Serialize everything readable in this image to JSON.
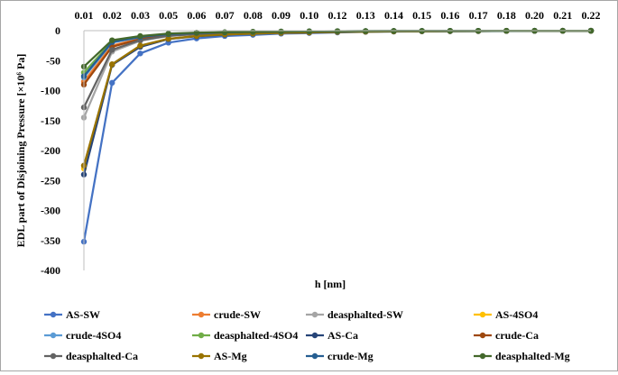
{
  "chart_data": {
    "type": "line",
    "xlabel": "h [nm]",
    "ylabel": "EDL part of Disjoining  Pressure [×10⁶ Pa]",
    "categories": [
      "0.01",
      "0.02",
      "0.03",
      "0.05",
      "0.06",
      "0.07",
      "0.08",
      "0.09",
      "0.10",
      "0.12",
      "0.13",
      "0.14",
      "0.15",
      "0.16",
      "0.17",
      "0.18",
      "0.20",
      "0.21",
      "0.22"
    ],
    "ylim": [
      -400,
      0
    ],
    "yticks": [
      0,
      -50,
      -100,
      -150,
      -200,
      -250,
      -300,
      -350,
      -400
    ],
    "x_axis_position": "top",
    "grid": false,
    "legend_position": "bottom",
    "series": [
      {
        "name": "AS-SW",
        "color": "#4472c4",
        "values": [
          -352,
          -87,
          -38,
          -20,
          -13,
          -9,
          -7,
          -5,
          -4,
          -3,
          -2,
          -1.5,
          -1.2,
          -1,
          -0.8,
          -0.6,
          -0.5,
          -0.4,
          -0.3
        ]
      },
      {
        "name": "crude-SW",
        "color": "#ed7d31",
        "values": [
          -85,
          -25,
          -13,
          -7,
          -5,
          -3.5,
          -2.6,
          -2,
          -1.6,
          -1.2,
          -0.9,
          -0.7,
          -0.6,
          -0.5,
          -0.4,
          -0.3,
          -0.25,
          -0.2,
          -0.15
        ]
      },
      {
        "name": "deasphalted-SW",
        "color": "#a5a5a5",
        "values": [
          -145,
          -35,
          -17,
          -9,
          -6,
          -4.5,
          -3.4,
          -2.6,
          -2,
          -1.5,
          -1.2,
          -0.9,
          -0.7,
          -0.6,
          -0.5,
          -0.4,
          -0.3,
          -0.25,
          -0.2
        ]
      },
      {
        "name": "AS-4SO4",
        "color": "#ffc000",
        "values": [
          -230,
          -57,
          -26,
          -14,
          -9,
          -6.5,
          -5,
          -3.8,
          -3,
          -2.2,
          -1.7,
          -1.3,
          -1,
          -0.8,
          -0.7,
          -0.5,
          -0.4,
          -0.35,
          -0.3
        ]
      },
      {
        "name": "crude-4SO4",
        "color": "#5b9bd5",
        "values": [
          -78,
          -20,
          -11,
          -6,
          -4,
          -3,
          -2.2,
          -1.7,
          -1.3,
          -1,
          -0.8,
          -0.6,
          -0.5,
          -0.4,
          -0.3,
          -0.25,
          -0.2,
          -0.15,
          -0.1
        ]
      },
      {
        "name": "deasphalted-4SO4",
        "color": "#70ad47",
        "values": [
          -70,
          -18,
          -10,
          -5.5,
          -3.8,
          -2.8,
          -2,
          -1.6,
          -1.2,
          -0.9,
          -0.7,
          -0.55,
          -0.45,
          -0.35,
          -0.3,
          -0.22,
          -0.18,
          -0.14,
          -0.1
        ]
      },
      {
        "name": "AS-Ca",
        "color": "#264478",
        "values": [
          -240,
          -57,
          -27,
          -14,
          -9.5,
          -6.8,
          -5,
          -3.8,
          -3,
          -2.2,
          -1.7,
          -1.3,
          -1,
          -0.8,
          -0.7,
          -0.5,
          -0.4,
          -0.35,
          -0.3
        ]
      },
      {
        "name": "crude-Ca",
        "color": "#9e480e",
        "values": [
          -90,
          -27,
          -14,
          -7.5,
          -5,
          -3.7,
          -2.7,
          -2.1,
          -1.6,
          -1.2,
          -0.9,
          -0.7,
          -0.6,
          -0.5,
          -0.4,
          -0.3,
          -0.25,
          -0.2,
          -0.15
        ]
      },
      {
        "name": "deasphalted-Ca",
        "color": "#636363",
        "values": [
          -128,
          -32,
          -16,
          -8.5,
          -5.7,
          -4.2,
          -3.1,
          -2.4,
          -1.9,
          -1.4,
          -1.1,
          -0.85,
          -0.7,
          -0.55,
          -0.45,
          -0.35,
          -0.28,
          -0.22,
          -0.18
        ]
      },
      {
        "name": "AS-Mg",
        "color": "#997300",
        "values": [
          -225,
          -56,
          -25,
          -13.5,
          -9,
          -6.4,
          -4.8,
          -3.7,
          -2.9,
          -2.1,
          -1.6,
          -1.25,
          -1,
          -0.8,
          -0.65,
          -0.5,
          -0.4,
          -0.33,
          -0.28
        ]
      },
      {
        "name": "crude-Mg",
        "color": "#255e91",
        "values": [
          -76,
          -19,
          -10.5,
          -5.8,
          -3.9,
          -2.9,
          -2.1,
          -1.65,
          -1.25,
          -0.95,
          -0.75,
          -0.58,
          -0.47,
          -0.38,
          -0.3,
          -0.23,
          -0.19,
          -0.15,
          -0.1
        ]
      },
      {
        "name": "deasphalted-Mg",
        "color": "#43682b",
        "values": [
          -60,
          -16,
          -9,
          -5,
          -3.4,
          -2.5,
          -1.8,
          -1.4,
          -1.1,
          -0.8,
          -0.65,
          -0.5,
          -0.4,
          -0.32,
          -0.26,
          -0.2,
          -0.16,
          -0.13,
          -0.1
        ]
      }
    ]
  }
}
